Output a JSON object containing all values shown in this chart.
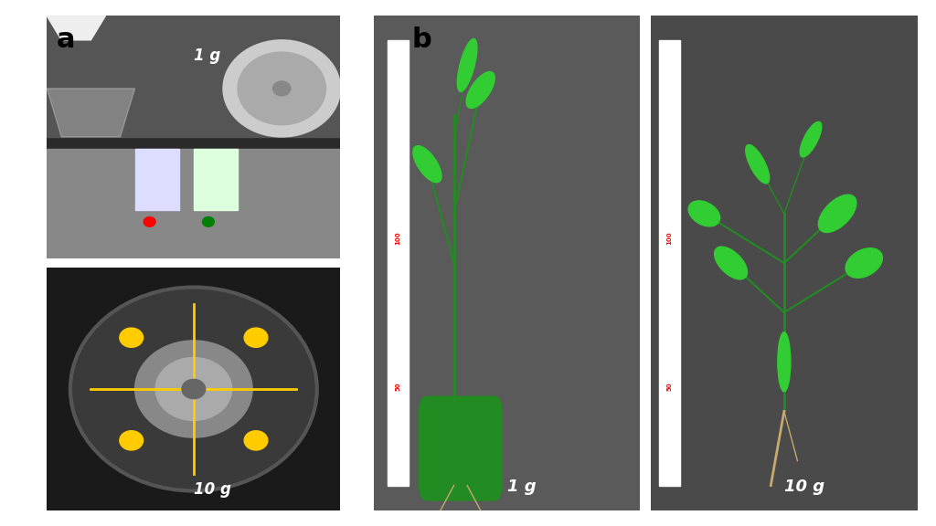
{
  "background_color": "#ffffff",
  "panel_a_label": "a",
  "panel_b_label": "b",
  "label_fontsize": 22,
  "label_fontweight": "bold",
  "top_label_1g": "1 g",
  "top_label_10g": "10 g",
  "bottom_label_1g": "1 g",
  "bottom_label_10g": "10 g",
  "label_color": "white",
  "label_fontsize_img": 14,
  "fig_width": 10.24,
  "fig_height": 5.76
}
